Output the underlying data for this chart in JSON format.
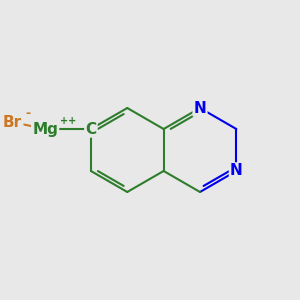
{
  "background_color": "#e8e8e8",
  "bond_color": "#2d7d2d",
  "n_color": "#0000ee",
  "br_color": "#cc7722",
  "mg_color": "#2d7d2d",
  "c_color": "#2d7d2d",
  "bond_width": 1.5,
  "figsize": [
    3.0,
    3.0
  ],
  "dpi": 100,
  "xlim": [
    0.0,
    7.5
  ],
  "ylim": [
    1.5,
    7.5
  ]
}
